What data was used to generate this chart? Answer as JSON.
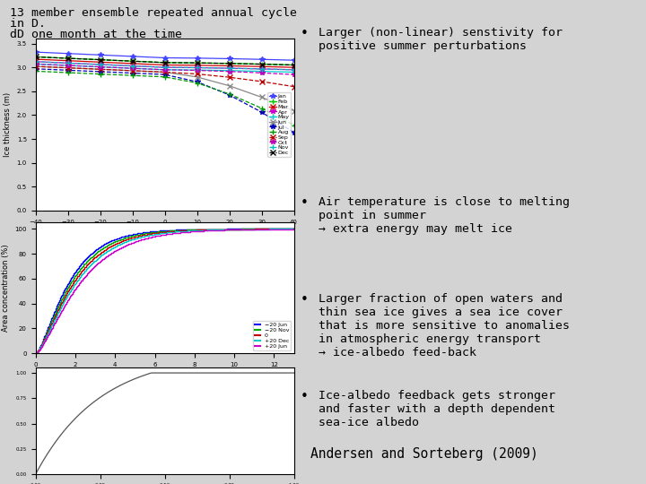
{
  "background_color": "#d3d3d3",
  "title_line1": "13 member ensemble repeated annual cycle",
  "title_line2": "in D.",
  "subtitle": "dD one month at the time",
  "bullet_points": [
    "Larger (non-linear) senstivity for\npositive summer perturbations",
    "Air temperature is close to melting\npoint in summer\n→ extra energy may melt ice",
    "Larger fraction of open waters and\nthin sea ice gives a sea ice cover\nthat is more sensitive to anomalies\nin atmospheric energy transport\n→ ice-albedo feed-back",
    "Ice-albedo feedback gets stronger\nand faster with a depth dependent\nsea-ice albedo"
  ],
  "footer": "Andersen and Sorteberg (2009)",
  "title_fontsize": 9.5,
  "bullet_fontsize": 9.5,
  "footer_fontsize": 10.5
}
